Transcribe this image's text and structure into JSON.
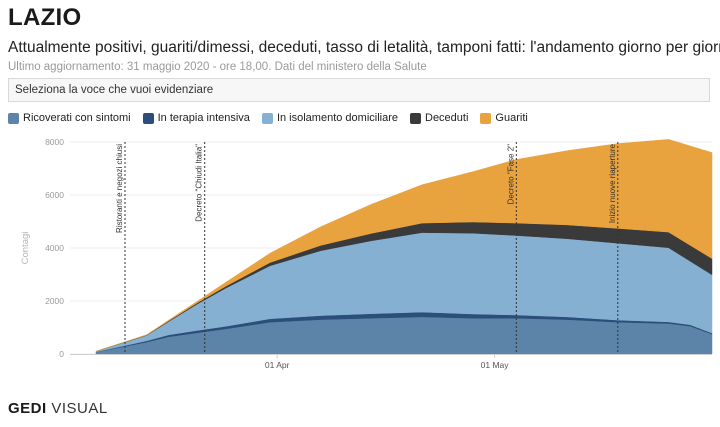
{
  "header": {
    "title": "LAZIO",
    "subtitle": "Attualmente positivi, guariti/dimessi, deceduti, tasso di letalità, tamponi fatti: l'andamento giorno per giorno",
    "updated": "Ultimo aggiornamento: 31 maggio 2020 - ore 18,00. Dati del ministero della Salute"
  },
  "selector": {
    "label": "Seleziona la voce che vuoi evidenziare"
  },
  "footer": {
    "brand_bold": "GEDI",
    "brand_thin": "VISUAL"
  },
  "colors": {
    "ricoverati": "#5b84a8",
    "terapia": "#2b4f7a",
    "isolamento": "#85b0d1",
    "deceduti": "#3a3a3a",
    "guariti": "#e8a23e"
  },
  "chart_data": {
    "type": "area",
    "stacked": true,
    "x": [
      "2020-03-07",
      "2020-03-14",
      "2020-03-17",
      "2020-03-21",
      "2020-03-25",
      "2020-03-31",
      "2020-04-07",
      "2020-04-14",
      "2020-04-21",
      "2020-04-28",
      "2020-05-04",
      "2020-05-11",
      "2020-05-18",
      "2020-05-25",
      "2020-05-28",
      "2020-05-31"
    ],
    "xticks": [
      "01 Apr",
      "01 May"
    ],
    "ylabel": "Contagi",
    "ylim": [
      0,
      8000
    ],
    "yticks": [
      0,
      2000,
      4000,
      6000,
      8000
    ],
    "series": [
      {
        "name": "Ricoverati con sintomi",
        "key": "ricoverati",
        "values": [
          70,
          450,
          650,
          800,
          950,
          1200,
          1300,
          1350,
          1400,
          1350,
          1350,
          1300,
          1200,
          1150,
          1050,
          750
        ]
      },
      {
        "name": "In terapia intensiva",
        "key": "terapia",
        "values": [
          10,
          50,
          70,
          90,
          100,
          130,
          150,
          170,
          180,
          160,
          120,
          100,
          80,
          60,
          50,
          40
        ]
      },
      {
        "name": "In isolamento domiciliare",
        "key": "isolamento",
        "values": [
          20,
          200,
          500,
          1000,
          1450,
          2000,
          2450,
          2750,
          3000,
          3050,
          3000,
          2950,
          2900,
          2800,
          2400,
          2200
        ]
      },
      {
        "name": "Deceduti",
        "key": "deceduti",
        "values": [
          3,
          15,
          25,
          45,
          70,
          120,
          200,
          280,
          360,
          420,
          470,
          520,
          560,
          590,
          600,
          610
        ]
      },
      {
        "name": "Guariti",
        "key": "guariti",
        "values": [
          3,
          15,
          30,
          60,
          150,
          350,
          700,
          1100,
          1450,
          1900,
          2400,
          2800,
          3200,
          3500,
          3750,
          4000
        ]
      }
    ],
    "annotations": [
      {
        "date": "2020-03-11",
        "text": "Ristoranti e negozi chiusi"
      },
      {
        "date": "2020-03-22",
        "text": "Decreto \"Chiudi Italia\""
      },
      {
        "date": "2020-05-04",
        "text": "Decreto \"Fase 2\""
      },
      {
        "date": "2020-05-18",
        "text": "Inizio nuove riaperture"
      }
    ]
  }
}
